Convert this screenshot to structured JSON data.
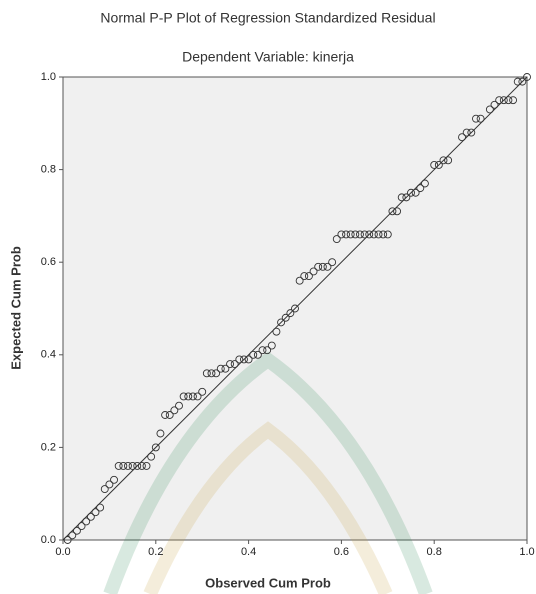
{
  "chart_data": {
    "type": "scatter",
    "title": "Normal P-P Plot of Regression Standardized Residual",
    "subtitle": "Dependent Variable: kinerja",
    "x_label": "Observed Cum Prob",
    "y_label": "Expected Cum Prob",
    "color": "#333333",
    "xlim": [
      0,
      1
    ],
    "ylim": [
      0,
      1
    ],
    "xticks": [
      {
        "value": 0,
        "label": "0.0"
      },
      0.2,
      0.4,
      0.6,
      0.8,
      {
        "value": 1,
        "label": "1.0"
      }
    ],
    "yticks": [
      {
        "value": 0,
        "label": "0.0"
      },
      0.2,
      0.4,
      0.6,
      0.8,
      {
        "value": 1,
        "label": "1.0"
      }
    ],
    "x": [
      0.01,
      0.02,
      0.03,
      0.04,
      0.05,
      0.06,
      0.07,
      0.08,
      0.09,
      0.1,
      0.11,
      0.12,
      0.13,
      0.14,
      0.15,
      0.16,
      0.17,
      0.18,
      0.19,
      0.2,
      0.21,
      0.22,
      0.23,
      0.24,
      0.25,
      0.26,
      0.27,
      0.28,
      0.29,
      0.3,
      0.31,
      0.32,
      0.33,
      0.34,
      0.35,
      0.36,
      0.37,
      0.38,
      0.39,
      0.4,
      0.41,
      0.42,
      0.43,
      0.44,
      0.45,
      0.46,
      0.47,
      0.48,
      0.49,
      0.5,
      0.51,
      0.52,
      0.53,
      0.54,
      0.55,
      0.56,
      0.57,
      0.58,
      0.59,
      0.6,
      0.61,
      0.62,
      0.63,
      0.64,
      0.65,
      0.66,
      0.67,
      0.68,
      0.69,
      0.7,
      0.71,
      0.72,
      0.73,
      0.74,
      0.75,
      0.76,
      0.77,
      0.78,
      0.8,
      0.81,
      0.82,
      0.83,
      0.86,
      0.87,
      0.88,
      0.89,
      0.9,
      0.92,
      0.93,
      0.94,
      0.95,
      0.96,
      0.97,
      0.98,
      0.99,
      1.0
    ],
    "values": [
      0.0,
      0.01,
      0.02,
      0.03,
      0.04,
      0.05,
      0.06,
      0.07,
      0.11,
      0.12,
      0.13,
      0.16,
      0.16,
      0.16,
      0.16,
      0.16,
      0.16,
      0.16,
      0.18,
      0.2,
      0.23,
      0.27,
      0.27,
      0.28,
      0.29,
      0.31,
      0.31,
      0.31,
      0.31,
      0.32,
      0.36,
      0.36,
      0.36,
      0.37,
      0.37,
      0.38,
      0.38,
      0.39,
      0.39,
      0.39,
      0.4,
      0.4,
      0.41,
      0.41,
      0.42,
      0.45,
      0.47,
      0.48,
      0.49,
      0.5,
      0.56,
      0.57,
      0.57,
      0.58,
      0.59,
      0.59,
      0.59,
      0.6,
      0.65,
      0.66,
      0.66,
      0.66,
      0.66,
      0.66,
      0.66,
      0.66,
      0.66,
      0.66,
      0.66,
      0.66,
      0.71,
      0.71,
      0.74,
      0.74,
      0.75,
      0.75,
      0.76,
      0.77,
      0.81,
      0.81,
      0.82,
      0.82,
      0.87,
      0.88,
      0.88,
      0.91,
      0.91,
      0.93,
      0.94,
      0.95,
      0.95,
      0.95,
      0.95,
      0.99,
      0.99,
      1.0
    ]
  }
}
